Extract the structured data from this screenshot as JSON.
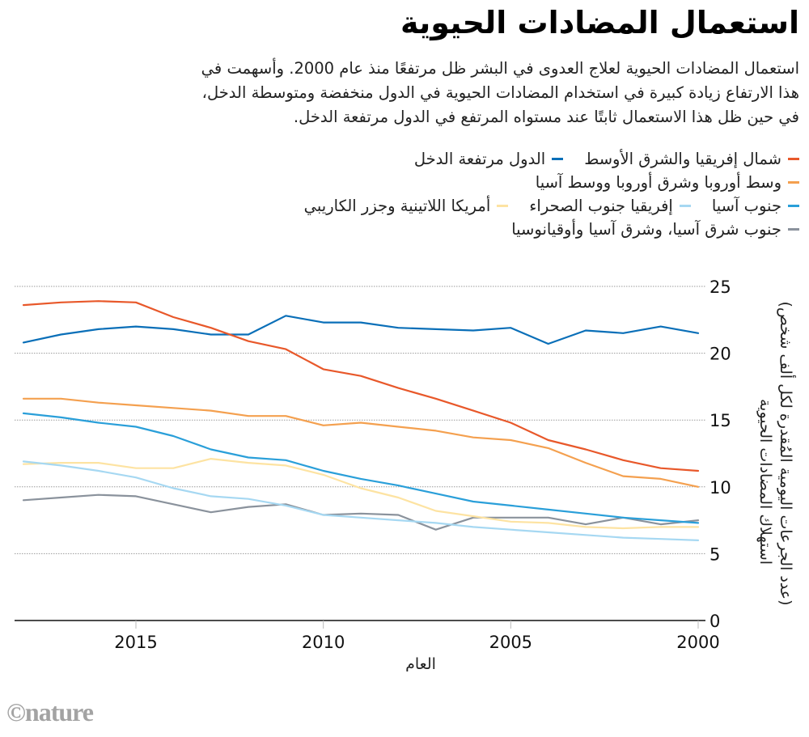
{
  "title": "استعمال المضادات الحيوية",
  "subtitle_lines": [
    "استعمال المضادات الحيوية لعلاج العدوى في البشر ظل مرتفعًا منذ عام 2000. وأسهمت في",
    "هذا الارتفاع زيادة كبيرة في استخدام المضادات الحيوية في الدول منخفضة ومتوسطة الدخل،",
    "في حين ظل هذا الاستعمال ثابتًا عند مستواه المرتفع في الدول مرتفعة الدخل."
  ],
  "logo": "©nature",
  "chart_data": {
    "type": "line",
    "title": "استعمال المضادات الحيوية",
    "xlabel": "العام",
    "ylabel_line1": "استهلاك المضادات الحيوية",
    "ylabel_line2": "(عدد الجرعات اليومية المُقدرة لكل ألف شخص)",
    "x": [
      2000,
      2001,
      2002,
      2003,
      2004,
      2005,
      2006,
      2007,
      2008,
      2009,
      2010,
      2011,
      2012,
      2013,
      2014,
      2015,
      2016,
      2017,
      2018
    ],
    "x_reversed": true,
    "xlim": [
      2000,
      2018
    ],
    "ylim": [
      0,
      25
    ],
    "x_ticks": [
      2000,
      2005,
      2010,
      2015
    ],
    "x_tick_labels": [
      "2000",
      "2005",
      "2010",
      "2015"
    ],
    "y_ticks": [
      0,
      5,
      10,
      15,
      20,
      25
    ],
    "y_tick_labels": [
      "0",
      "5",
      "10",
      "15",
      "20",
      "25"
    ],
    "grid": "horizontal-dotted",
    "legend_position": "top-right",
    "series": [
      {
        "name": "شمال إفريقيا والشرق الأوسط",
        "color": "#e8582a",
        "values": [
          11.2,
          11.4,
          12.0,
          12.8,
          13.5,
          14.8,
          15.7,
          16.6,
          17.4,
          18.3,
          18.8,
          20.3,
          20.9,
          21.9,
          22.7,
          23.8,
          23.9,
          23.8,
          23.6
        ]
      },
      {
        "name": "الدول مرتفعة الدخل",
        "color": "#0a6fb8",
        "values": [
          21.5,
          22.0,
          21.5,
          21.7,
          20.7,
          21.9,
          21.7,
          21.8,
          21.9,
          22.3,
          22.3,
          22.8,
          21.4,
          21.4,
          21.8,
          22.0,
          21.8,
          21.4,
          20.8
        ]
      },
      {
        "name": "وسط أوروبا وشرق أوروبا ووسط آسيا",
        "color": "#f4a04f",
        "values": [
          10.0,
          10.6,
          10.8,
          11.8,
          12.9,
          13.5,
          13.7,
          14.2,
          14.5,
          14.8,
          14.6,
          15.3,
          15.3,
          15.7,
          15.9,
          16.1,
          16.3,
          16.6,
          16.6
        ]
      },
      {
        "name": "جنوب آسيا",
        "color": "#2a9fd9",
        "values": [
          7.3,
          7.5,
          7.7,
          8.0,
          8.3,
          8.6,
          8.9,
          9.5,
          10.1,
          10.6,
          11.2,
          12.0,
          12.2,
          12.8,
          13.8,
          14.5,
          14.8,
          15.2,
          15.5
        ]
      },
      {
        "name": "إفريقيا جنوب الصحراء",
        "color": "#a6d8f2",
        "values": [
          6.0,
          6.1,
          6.2,
          6.4,
          6.6,
          6.8,
          7.0,
          7.3,
          7.5,
          7.7,
          7.9,
          8.6,
          9.1,
          9.3,
          9.9,
          10.7,
          11.2,
          11.6,
          11.9
        ]
      },
      {
        "name": "أمريكا اللاتينية وجزر الكاريبي",
        "color": "#fde3a2",
        "values": [
          7.0,
          7.0,
          6.9,
          7.0,
          7.3,
          7.4,
          7.8,
          8.2,
          9.2,
          9.9,
          10.9,
          11.6,
          11.8,
          12.1,
          11.4,
          11.4,
          11.8,
          11.8,
          11.7
        ]
      },
      {
        "name": "جنوب شرق آسيا، وشرق آسيا وأوقيانوسيا",
        "color": "#8a929c",
        "values": [
          7.5,
          7.2,
          7.7,
          7.2,
          7.7,
          7.7,
          7.7,
          6.8,
          7.9,
          8.0,
          7.9,
          8.7,
          8.5,
          8.1,
          8.7,
          9.3,
          9.4,
          9.2,
          9.0
        ]
      }
    ]
  },
  "legend_rows": [
    [
      0,
      1
    ],
    [
      2
    ],
    [
      3,
      4,
      5
    ],
    [
      6
    ]
  ]
}
